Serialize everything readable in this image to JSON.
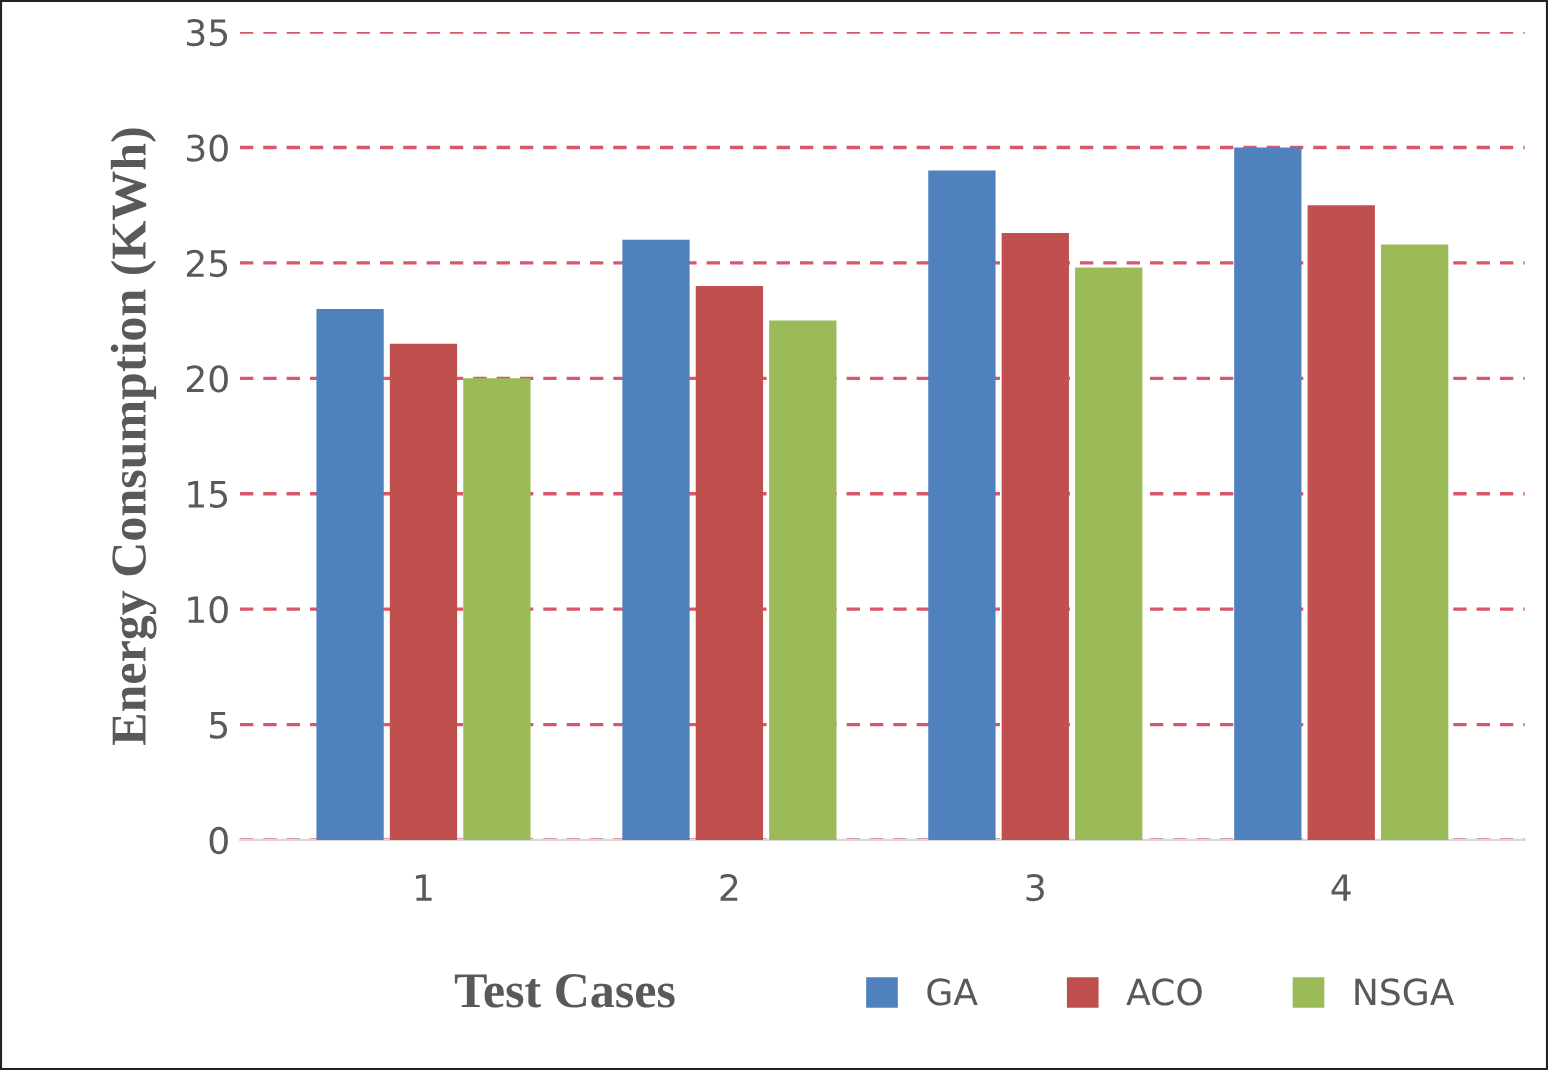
{
  "chart_data": {
    "type": "bar",
    "xlabel": "Test Cases",
    "ylabel": "Energy Consumption (KWh)",
    "categories": [
      "1",
      "2",
      "3",
      "4"
    ],
    "series": [
      {
        "name": "GA",
        "color": "#4f81bd",
        "values": [
          23,
          26,
          29,
          30
        ]
      },
      {
        "name": "ACO",
        "color": "#c0504d",
        "values": [
          21.5,
          24,
          26.3,
          27.5
        ]
      },
      {
        "name": "NSGA",
        "color": "#9bbb59",
        "values": [
          20,
          22.5,
          24.8,
          25.8
        ]
      }
    ],
    "ylim": [
      0,
      35
    ],
    "yticks": [
      0,
      5,
      10,
      15,
      20,
      25,
      30,
      35
    ],
    "grid": "y",
    "legend": "bottom right"
  }
}
